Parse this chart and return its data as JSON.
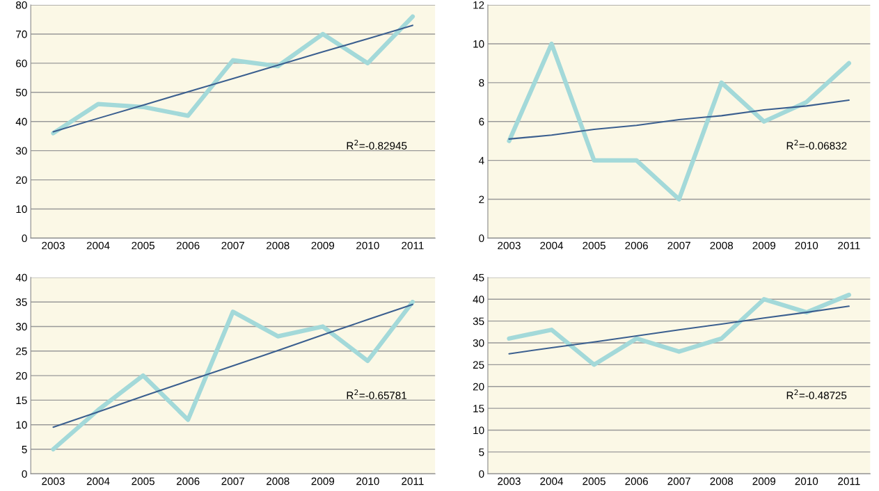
{
  "chart_data": [
    {
      "type": "line",
      "categories": [
        "2003",
        "2004",
        "2005",
        "2006",
        "2007",
        "2008",
        "2009",
        "2010",
        "2011"
      ],
      "ylim": [
        0,
        80
      ],
      "yticks": [
        0,
        10,
        20,
        30,
        40,
        50,
        60,
        70,
        80
      ],
      "grid": "y",
      "annotations": [
        "R$^{2}$=-0.82945"
      ],
      "series": [
        {
          "color": "#a3d9d9",
          "values": [
            36,
            46,
            45,
            42,
            61,
            59,
            70,
            60,
            76
          ]
        },
        {
          "color": "#3b5f8f",
          "values": [
            36.5,
            41.1,
            45.6,
            50.2,
            54.7,
            59.3,
            63.9,
            68.4,
            73
          ]
        }
      ]
    },
    {
      "type": "line",
      "categories": [
        "2003",
        "2004",
        "2005",
        "2006",
        "2007",
        "2008",
        "2009",
        "2010",
        "2011"
      ],
      "ylim": [
        0,
        12
      ],
      "yticks": [
        0,
        2,
        4,
        6,
        8,
        10,
        12
      ],
      "grid": "y",
      "annotations": [
        "R$^{2}$=-0.06832"
      ],
      "series": [
        {
          "color": "#a3d9d9",
          "values": [
            5,
            10,
            4,
            4,
            2,
            8,
            6,
            7,
            9
          ]
        },
        {
          "color": "#3b5f8f",
          "values": [
            5.1,
            5.3,
            5.6,
            5.8,
            6.1,
            6.3,
            6.6,
            6.8,
            7.1
          ]
        }
      ]
    },
    {
      "type": "line",
      "categories": [
        "2003",
        "2004",
        "2005",
        "2006",
        "2007",
        "2008",
        "2009",
        "2010",
        "2011"
      ],
      "ylim": [
        0,
        40
      ],
      "yticks": [
        0,
        5,
        10,
        15,
        20,
        25,
        30,
        35,
        40
      ],
      "grid": "y",
      "annotations": [
        "R$^{2}$=-0.65781"
      ],
      "series": [
        {
          "color": "#a3d9d9",
          "values": [
            5,
            13,
            20,
            11,
            33,
            28,
            30,
            23,
            35
          ]
        },
        {
          "color": "#3b5f8f",
          "values": [
            9.5,
            12.6,
            15.8,
            18.9,
            22,
            25.1,
            28.3,
            31.4,
            34.5
          ]
        }
      ]
    },
    {
      "type": "line",
      "categories": [
        "2003",
        "2004",
        "2005",
        "2006",
        "2007",
        "2008",
        "2009",
        "2010",
        "2011"
      ],
      "ylim": [
        0,
        45
      ],
      "yticks": [
        0,
        5,
        10,
        15,
        20,
        25,
        30,
        35,
        40,
        45
      ],
      "grid": "y",
      "annotations": [
        "R$^{2}$=-0.48725"
      ],
      "series": [
        {
          "color": "#a3d9d9",
          "values": [
            31,
            33,
            25,
            31,
            28,
            31,
            40,
            37,
            41
          ]
        },
        {
          "color": "#3b5f8f",
          "values": [
            27.5,
            28.9,
            30.2,
            31.6,
            33,
            34.3,
            35.7,
            37,
            38.4
          ]
        }
      ]
    }
  ]
}
